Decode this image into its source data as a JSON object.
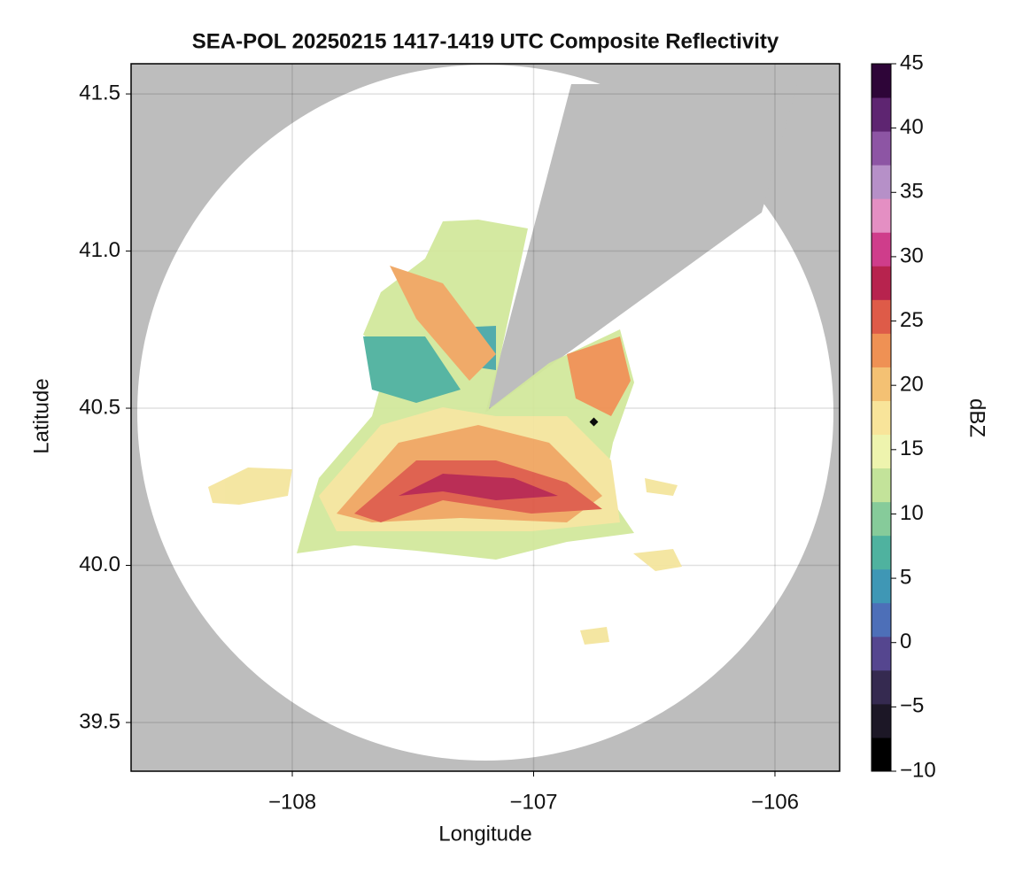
{
  "chart_data": {
    "type": "radar-map",
    "title": "SEA-POL 20250215 1417-1419 UTC Composite Reflectivity",
    "xlabel": "Longitude",
    "ylabel": "Latitude",
    "xlim": [
      -108.668,
      -105.732
    ],
    "ylim": [
      39.345,
      41.596
    ],
    "xticks": [
      {
        "value": -108,
        "label": "−108"
      },
      {
        "value": -107,
        "label": "−107"
      },
      {
        "value": -106,
        "label": "−106"
      }
    ],
    "yticks": [
      {
        "value": 39.5,
        "label": "39.5"
      },
      {
        "value": 40.0,
        "label": "40.0"
      },
      {
        "value": 40.5,
        "label": "40.5"
      },
      {
        "value": 41.0,
        "label": "41.0"
      },
      {
        "value": 41.5,
        "label": "41.5"
      }
    ],
    "grid": true,
    "colorbar": {
      "label": "dBZ",
      "lim": [
        -10,
        45
      ],
      "ticks": [
        {
          "value": -10,
          "label": "−10"
        },
        {
          "value": -5,
          "label": "−5"
        },
        0,
        5,
        10,
        15,
        20,
        25,
        30,
        35,
        40,
        45
      ],
      "colors": [
        "#000000",
        "#1c1726",
        "#352a50",
        "#55468f",
        "#4d6fb8",
        "#3f97b5",
        "#4fb29f",
        "#86cb9a",
        "#c3e39a",
        "#eef4ae",
        "#f8e49a",
        "#f4c173",
        "#ef9154",
        "#de5b48",
        "#b7234e",
        "#cf3d8b",
        "#e48fc3",
        "#b690c8",
        "#8d55a4",
        "#5e2571",
        "#2e0538"
      ]
    }
  }
}
